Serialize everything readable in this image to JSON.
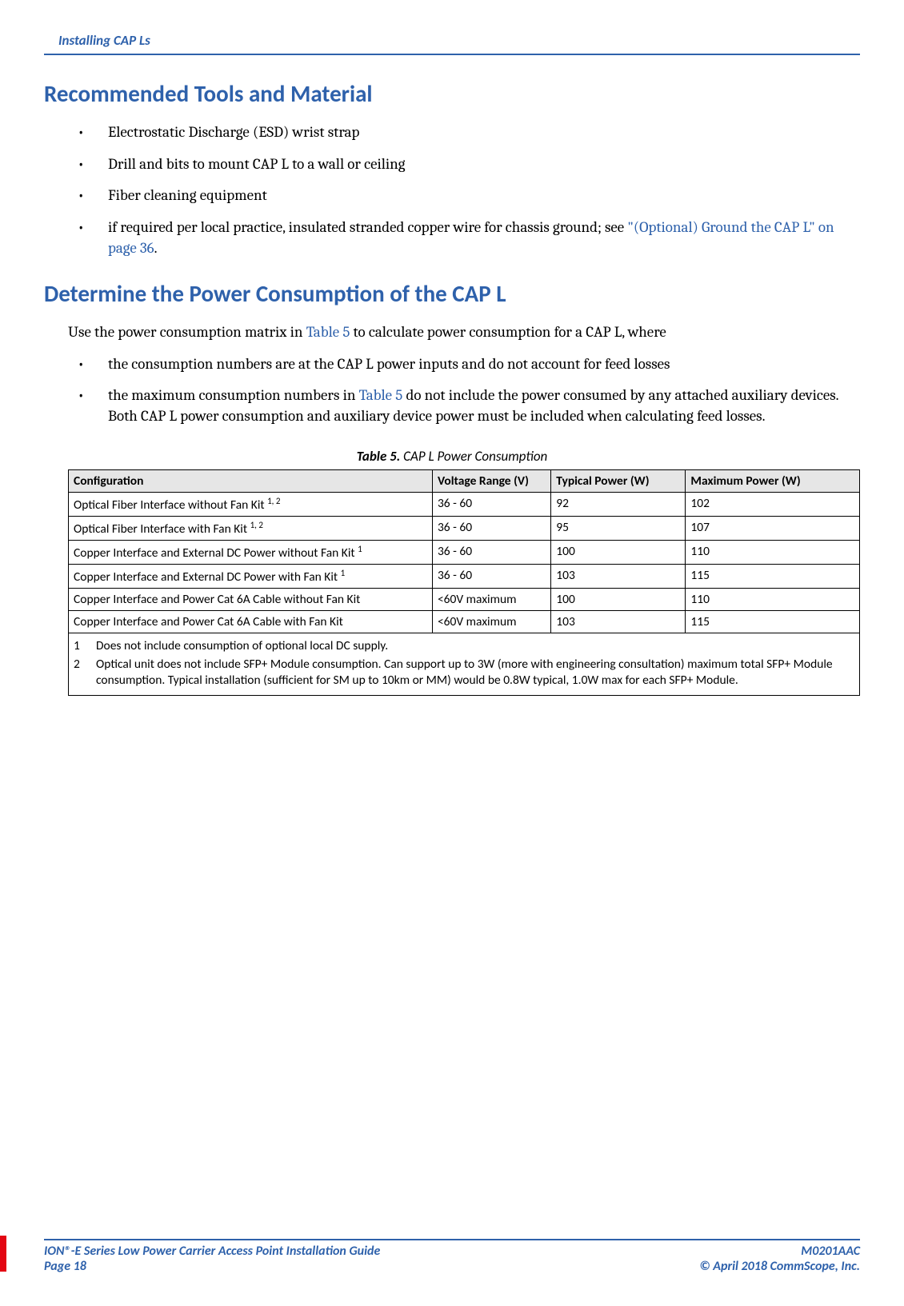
{
  "header": {
    "section_title": "Installing CAP Ls"
  },
  "section1": {
    "heading": "Recommended Tools and Material",
    "bullets": [
      {
        "text_plain": "Electrostatic Discharge (ESD) wrist strap"
      },
      {
        "text_plain": "Drill and bits to mount CAP L to a wall or ceiling"
      },
      {
        "text_plain": "Fiber cleaning equipment"
      },
      {
        "text_pre": "if required per local practice, insulated stranded copper wire for chassis ground; see ",
        "link_text": "\"(Optional) Ground the CAP L\" on page 36",
        "text_post": "."
      }
    ]
  },
  "section2": {
    "heading": "Determine the Power Consumption of the CAP L",
    "intro_pre": "Use the power consumption matrix in ",
    "intro_link": "Table 5",
    "intro_post": " to calculate power consumption for a CAP L, where",
    "bullets": [
      {
        "text_plain": "the consumption numbers are at the CAP L power inputs and do not account for feed losses"
      },
      {
        "text_pre": "the maximum consumption numbers in ",
        "link_text": "Table 5",
        "text_post": " do not include the power consumed by any attached auxiliary devices. Both CAP L power consumption and auxiliary device power must be included when calculating feed losses."
      }
    ]
  },
  "table": {
    "caption_bold": "Table 5.",
    "caption_rest": " CAP L Power Consumption",
    "columns": [
      "Configuration",
      "Voltage Range (V)",
      "Typical Power (W)",
      "Maximum Power (W)"
    ],
    "rows": [
      {
        "config": "Optical Fiber Interface without Fan Kit ",
        "sup": "1, 2",
        "voltage": "36 - 60",
        "typical": "92",
        "max": "102"
      },
      {
        "config": "Optical Fiber Interface with Fan Kit ",
        "sup": "1, 2",
        "voltage": "36 - 60",
        "typical": "95",
        "max": "107"
      },
      {
        "config": "Copper Interface and External DC Power without Fan Kit ",
        "sup": "1",
        "voltage": "36 - 60",
        "typical": "100",
        "max": "110"
      },
      {
        "config": "Copper Interface and External DC Power with Fan Kit ",
        "sup": "1",
        "voltage": "36 - 60",
        "typical": "103",
        "max": "115"
      },
      {
        "config": "Copper Interface and Power Cat 6A Cable without Fan Kit",
        "sup": "",
        "voltage": "<60V maximum",
        "typical": "100",
        "max": "110"
      },
      {
        "config": "Copper Interface and Power Cat 6A Cable with Fan Kit",
        "sup": "",
        "voltage": "<60V maximum",
        "typical": "103",
        "max": "115"
      }
    ],
    "footnotes": [
      {
        "num": "1",
        "text": "Does not include consumption of optional local DC supply."
      },
      {
        "num": "2",
        "text": "Optical unit does not include SFP+ Module consumption. Can support up to 3W (more with engineering consultation) maximum total SFP+ Module consumption. Typical installation (sufficient for SM up to 10km or MM) would be 0.8W typical, 1.0W max for each SFP+ Module."
      }
    ]
  },
  "footer": {
    "guide_title": "ION®-E Series Low Power Carrier Access Point Installation Guide",
    "page_label": "Page 18",
    "doc_id": "M0201AAC",
    "copyright": "© April 2018 CommScope, Inc."
  },
  "colors": {
    "accent": "#2e61ab",
    "red": "#e30613",
    "header_bg": "#e6e6e6"
  }
}
